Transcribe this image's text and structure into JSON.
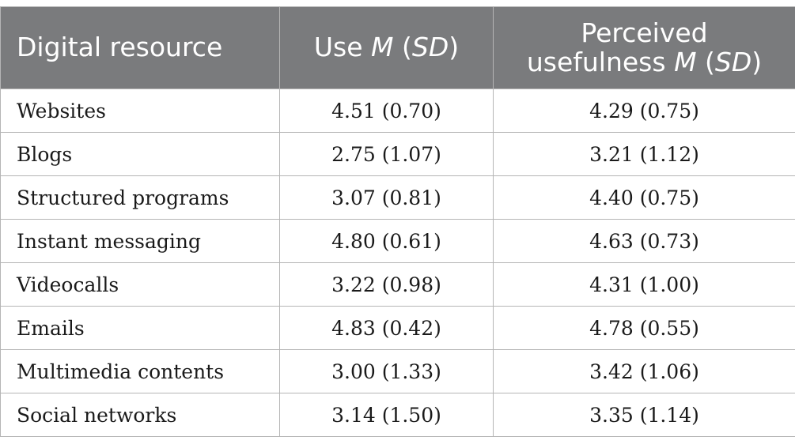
{
  "table": {
    "headers": {
      "resource": "Digital resource",
      "use": {
        "prefix": "Use ",
        "m": "M",
        "open": " (",
        "sd": "SD",
        "close": ")"
      },
      "usefulness": {
        "line1": "Perceived",
        "prefix": "usefulness ",
        "m": "M",
        "open": " (",
        "sd": "SD",
        "close": ")"
      }
    },
    "rows": [
      {
        "resource": "Websites",
        "use": "4.51 (0.70)",
        "usefulness": "4.29 (0.75)"
      },
      {
        "resource": "Blogs",
        "use": "2.75 (1.07)",
        "usefulness": "3.21 (1.12)"
      },
      {
        "resource": "Structured programs",
        "use": "3.07 (0.81)",
        "usefulness": "4.40 (0.75)"
      },
      {
        "resource": "Instant messaging",
        "use": "4.80 (0.61)",
        "usefulness": "4.63 (0.73)"
      },
      {
        "resource": "Videocalls",
        "use": "3.22 (0.98)",
        "usefulness": "4.31 (1.00)"
      },
      {
        "resource": "Emails",
        "use": "4.83 (0.42)",
        "usefulness": "4.78 (0.55)"
      },
      {
        "resource": "Multimedia contents",
        "use": "3.00 (1.33)",
        "usefulness": "3.42 (1.06)"
      },
      {
        "resource": "Social networks",
        "use": "3.14 (1.50)",
        "usefulness": "3.35 (1.14)"
      }
    ]
  },
  "colors": {
    "header_bg": "#7a7b7d",
    "header_text": "#ffffff",
    "border": "#b5b5b5",
    "body_text": "#1a1a1a"
  }
}
